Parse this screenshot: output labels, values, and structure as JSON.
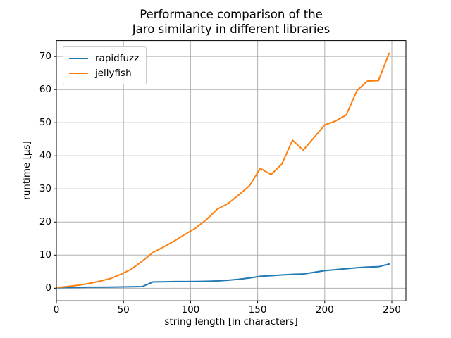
{
  "figure": {
    "background": "#ffffff",
    "grid_color": "#b0b0b0",
    "axis_color": "#000000"
  },
  "chart_data": {
    "type": "line",
    "title": "Performance comparison of the\nJaro similarity in different libraries",
    "xlabel": "string length [in characters]",
    "ylabel": "runtime [µs]",
    "xlim": [
      0,
      260.5
    ],
    "ylim": [
      -3.8,
      74.8
    ],
    "xticks": [
      0,
      50,
      100,
      150,
      200,
      250
    ],
    "yticks": [
      0,
      10,
      20,
      30,
      40,
      50,
      60,
      70
    ],
    "grid": true,
    "legend_position": "upper left",
    "x": [
      0,
      8,
      16,
      24,
      32,
      40,
      48,
      56,
      64,
      72,
      80,
      88,
      96,
      104,
      112,
      120,
      128,
      136,
      144,
      152,
      160,
      168,
      176,
      184,
      192,
      200,
      208,
      216,
      224,
      232,
      240,
      248
    ],
    "series": [
      {
        "name": "rapidfuzz",
        "color": "#1f77b4",
        "values": [
          0.15,
          0.2,
          0.25,
          0.3,
          0.3,
          0.35,
          0.4,
          0.45,
          0.5,
          1.9,
          1.95,
          2.0,
          2.0,
          2.05,
          2.1,
          2.2,
          2.4,
          2.7,
          3.1,
          3.6,
          3.8,
          4.0,
          4.2,
          4.3,
          4.8,
          5.3,
          5.6,
          5.9,
          6.2,
          6.4,
          6.5,
          7.3
        ]
      },
      {
        "name": "jellyfish",
        "color": "#ff7f0e",
        "values": [
          0.2,
          0.5,
          0.9,
          1.4,
          2.1,
          2.9,
          4.2,
          5.8,
          8.2,
          10.8,
          12.5,
          14.3,
          16.3,
          18.2,
          20.8,
          23.9,
          25.6,
          28.2,
          31.0,
          36.2,
          34.3,
          37.5,
          44.7,
          41.7,
          45.5,
          49.3,
          50.5,
          52.3,
          59.7,
          62.6,
          62.7,
          71.0
        ]
      }
    ]
  }
}
